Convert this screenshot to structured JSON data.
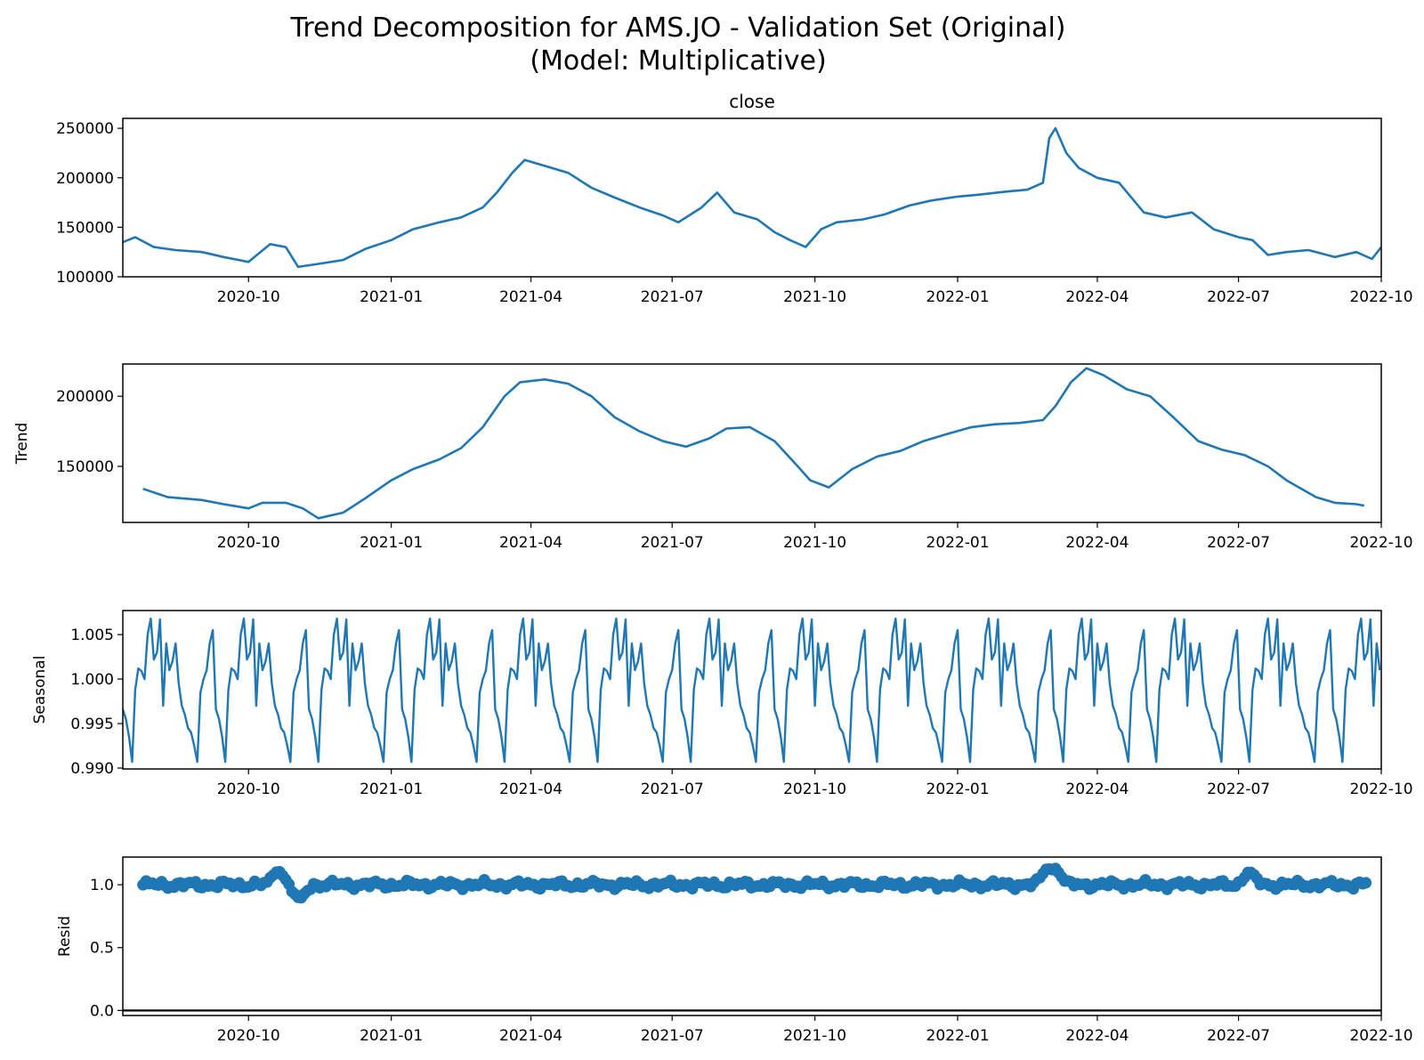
{
  "figure": {
    "title_line1": "Trend Decomposition for AMS.JO - Validation Set (Original)",
    "title_line2": "(Model: Multiplicative)"
  },
  "colors": {
    "series": "#1f77b4",
    "axis": "#000000",
    "background": "#ffffff"
  },
  "chart_data": [
    {
      "type": "line",
      "title": "close",
      "ylabel": "",
      "xlim": [
        "2020-07-12",
        "2022-10-01"
      ],
      "ylim": [
        100000,
        260000
      ],
      "yticks": [
        100000,
        150000,
        200000,
        250000
      ],
      "ytick_labels": [
        "100000",
        "150000",
        "200000",
        "250000"
      ],
      "xticks": [
        "2020-10-01",
        "2021-01-01",
        "2021-04-01",
        "2021-07-01",
        "2021-10-01",
        "2022-01-01",
        "2022-04-01",
        "2022-07-01",
        "2022-10-01"
      ],
      "xtick_labels": [
        "2020-10",
        "2021-01",
        "2021-04",
        "2021-07",
        "2021-10",
        "2022-01",
        "2022-04",
        "2022-07",
        "2022-10"
      ],
      "series": [
        {
          "x": [
            "2020-07-12",
            "2020-07-20",
            "2020-08-01",
            "2020-08-15",
            "2020-09-01",
            "2020-09-15",
            "2020-10-01",
            "2020-10-15",
            "2020-10-25",
            "2020-11-02",
            "2020-11-15",
            "2020-12-01",
            "2020-12-15",
            "2021-01-01",
            "2021-01-15",
            "2021-02-01",
            "2021-02-15",
            "2021-03-01",
            "2021-03-10",
            "2021-03-20",
            "2021-03-28",
            "2021-04-10",
            "2021-04-25",
            "2021-05-10",
            "2021-05-25",
            "2021-06-10",
            "2021-06-25",
            "2021-07-05",
            "2021-07-20",
            "2021-07-30",
            "2021-08-10",
            "2021-08-25",
            "2021-09-05",
            "2021-09-15",
            "2021-09-25",
            "2021-10-05",
            "2021-10-15",
            "2021-11-01",
            "2021-11-15",
            "2021-12-01",
            "2021-12-15",
            "2022-01-01",
            "2022-01-15",
            "2022-02-01",
            "2022-02-15",
            "2022-02-25",
            "2022-03-01",
            "2022-03-05",
            "2022-03-12",
            "2022-03-20",
            "2022-04-01",
            "2022-04-15",
            "2022-05-01",
            "2022-05-15",
            "2022-06-01",
            "2022-06-15",
            "2022-07-01",
            "2022-07-10",
            "2022-07-20",
            "2022-08-01",
            "2022-08-15",
            "2022-09-01",
            "2022-09-15",
            "2022-09-25",
            "2022-10-01"
          ],
          "y": [
            135000,
            140000,
            130000,
            127000,
            125000,
            120000,
            115000,
            133000,
            130000,
            110000,
            113000,
            117000,
            128000,
            137000,
            148000,
            155000,
            160000,
            170000,
            185000,
            205000,
            218000,
            212000,
            205000,
            190000,
            180000,
            170000,
            162000,
            155000,
            170000,
            185000,
            165000,
            158000,
            145000,
            137000,
            130000,
            148000,
            155000,
            158000,
            163000,
            172000,
            177000,
            181000,
            183000,
            186000,
            188000,
            195000,
            240000,
            250000,
            225000,
            210000,
            200000,
            195000,
            165000,
            160000,
            165000,
            148000,
            140000,
            137000,
            122000,
            125000,
            127000,
            120000,
            125000,
            118000,
            130000
          ]
        }
      ]
    },
    {
      "type": "line",
      "title": "",
      "ylabel": "Trend",
      "xlim": [
        "2020-07-12",
        "2022-10-01"
      ],
      "ylim": [
        110000,
        223000
      ],
      "yticks": [
        150000,
        200000
      ],
      "ytick_labels": [
        "150000",
        "200000"
      ],
      "xticks": [
        "2020-10-01",
        "2021-01-01",
        "2021-04-01",
        "2021-07-01",
        "2021-10-01",
        "2022-01-01",
        "2022-04-01",
        "2022-07-01",
        "2022-10-01"
      ],
      "xtick_labels": [
        "2020-10",
        "2021-01",
        "2021-04",
        "2021-07",
        "2021-10",
        "2022-01",
        "2022-04",
        "2022-07",
        "2022-10"
      ],
      "series": [
        {
          "x": [
            "2020-07-25",
            "2020-08-10",
            "2020-09-01",
            "2020-09-15",
            "2020-10-01",
            "2020-10-10",
            "2020-10-25",
            "2020-11-05",
            "2020-11-15",
            "2020-12-01",
            "2020-12-15",
            "2021-01-01",
            "2021-01-15",
            "2021-02-01",
            "2021-02-15",
            "2021-03-01",
            "2021-03-15",
            "2021-03-25",
            "2021-04-10",
            "2021-04-25",
            "2021-05-10",
            "2021-05-25",
            "2021-06-10",
            "2021-06-25",
            "2021-07-10",
            "2021-07-25",
            "2021-08-05",
            "2021-08-20",
            "2021-09-05",
            "2021-09-20",
            "2021-09-28",
            "2021-10-10",
            "2021-10-25",
            "2021-11-10",
            "2021-11-25",
            "2021-12-10",
            "2021-12-25",
            "2022-01-10",
            "2022-01-25",
            "2022-02-10",
            "2022-02-25",
            "2022-03-05",
            "2022-03-15",
            "2022-03-25",
            "2022-04-05",
            "2022-04-20",
            "2022-05-05",
            "2022-05-20",
            "2022-06-05",
            "2022-06-20",
            "2022-07-05",
            "2022-07-20",
            "2022-08-01",
            "2022-08-20",
            "2022-09-01",
            "2022-09-15",
            "2022-09-20"
          ],
          "y": [
            134000,
            128000,
            126000,
            123000,
            120000,
            124000,
            124000,
            120000,
            113000,
            117000,
            127000,
            140000,
            148000,
            155000,
            163000,
            178000,
            200000,
            210000,
            212000,
            209000,
            200000,
            185000,
            175000,
            168000,
            164000,
            170000,
            177000,
            178000,
            168000,
            150000,
            140000,
            135000,
            148000,
            157000,
            161000,
            168000,
            173000,
            178000,
            180000,
            181000,
            183000,
            193000,
            210000,
            220000,
            215000,
            205000,
            200000,
            185000,
            168000,
            162000,
            158000,
            150000,
            140000,
            128000,
            124000,
            123000,
            122000
          ]
        }
      ]
    },
    {
      "type": "line",
      "title": "",
      "ylabel": "Seasonal",
      "xlim": [
        "2020-07-12",
        "2022-10-01"
      ],
      "ylim": [
        0.9899,
        1.0077
      ],
      "yticks": [
        0.99,
        0.995,
        1.0,
        1.005
      ],
      "ytick_labels": [
        "0.990",
        "0.995",
        "1.000",
        "1.005"
      ],
      "xticks": [
        "2020-10-01",
        "2021-01-01",
        "2021-04-01",
        "2021-07-01",
        "2021-10-01",
        "2022-01-01",
        "2022-04-01",
        "2022-07-01",
        "2022-10-01"
      ],
      "xtick_labels": [
        "2020-10",
        "2021-01",
        "2021-04",
        "2021-07",
        "2021-10",
        "2022-01",
        "2022-04",
        "2022-07",
        "2022-10"
      ],
      "period_days": 30,
      "start": "2020-07-12",
      "end": "2022-10-01",
      "pattern": [
        0.9966,
        0.9955,
        0.9935,
        0.9907,
        0.9988,
        1.0012,
        1.0009,
        1.0,
        1.005,
        1.0068,
        1.0022,
        1.003,
        1.0067,
        0.997,
        1.004,
        1.001,
        1.002,
        1.004,
        0.9995,
        0.997,
        0.996,
        0.9945,
        0.994,
        0.9925,
        0.9907,
        0.9985,
        1.0,
        1.001,
        1.004,
        1.0055
      ]
    },
    {
      "type": "scatter",
      "title": "",
      "ylabel": "Resid",
      "xlim": [
        "2020-07-12",
        "2022-10-01"
      ],
      "ylim": [
        -0.04,
        1.22
      ],
      "yticks": [
        0.0,
        0.5,
        1.0
      ],
      "ytick_labels": [
        "0.0",
        "0.5",
        "1.0"
      ],
      "baseline": 0.0,
      "xticks": [
        "2020-10-01",
        "2021-01-01",
        "2021-04-01",
        "2021-07-01",
        "2021-10-01",
        "2022-01-01",
        "2022-04-01",
        "2022-07-01",
        "2022-10-01"
      ],
      "xtick_labels": [
        "2020-10",
        "2021-01",
        "2021-04",
        "2021-07",
        "2021-10",
        "2022-01",
        "2022-04",
        "2022-07",
        "2022-10"
      ],
      "start": "2020-07-25",
      "end": "2022-09-22",
      "typical_range": [
        0.93,
        1.07
      ],
      "excursions": [
        {
          "x": "2020-10-20",
          "y": 1.12
        },
        {
          "x": "2020-11-03",
          "y": 0.88
        },
        {
          "x": "2022-02-28",
          "y": 1.14
        },
        {
          "x": "2022-03-05",
          "y": 1.13
        },
        {
          "x": "2022-07-08",
          "y": 1.11
        }
      ]
    }
  ]
}
